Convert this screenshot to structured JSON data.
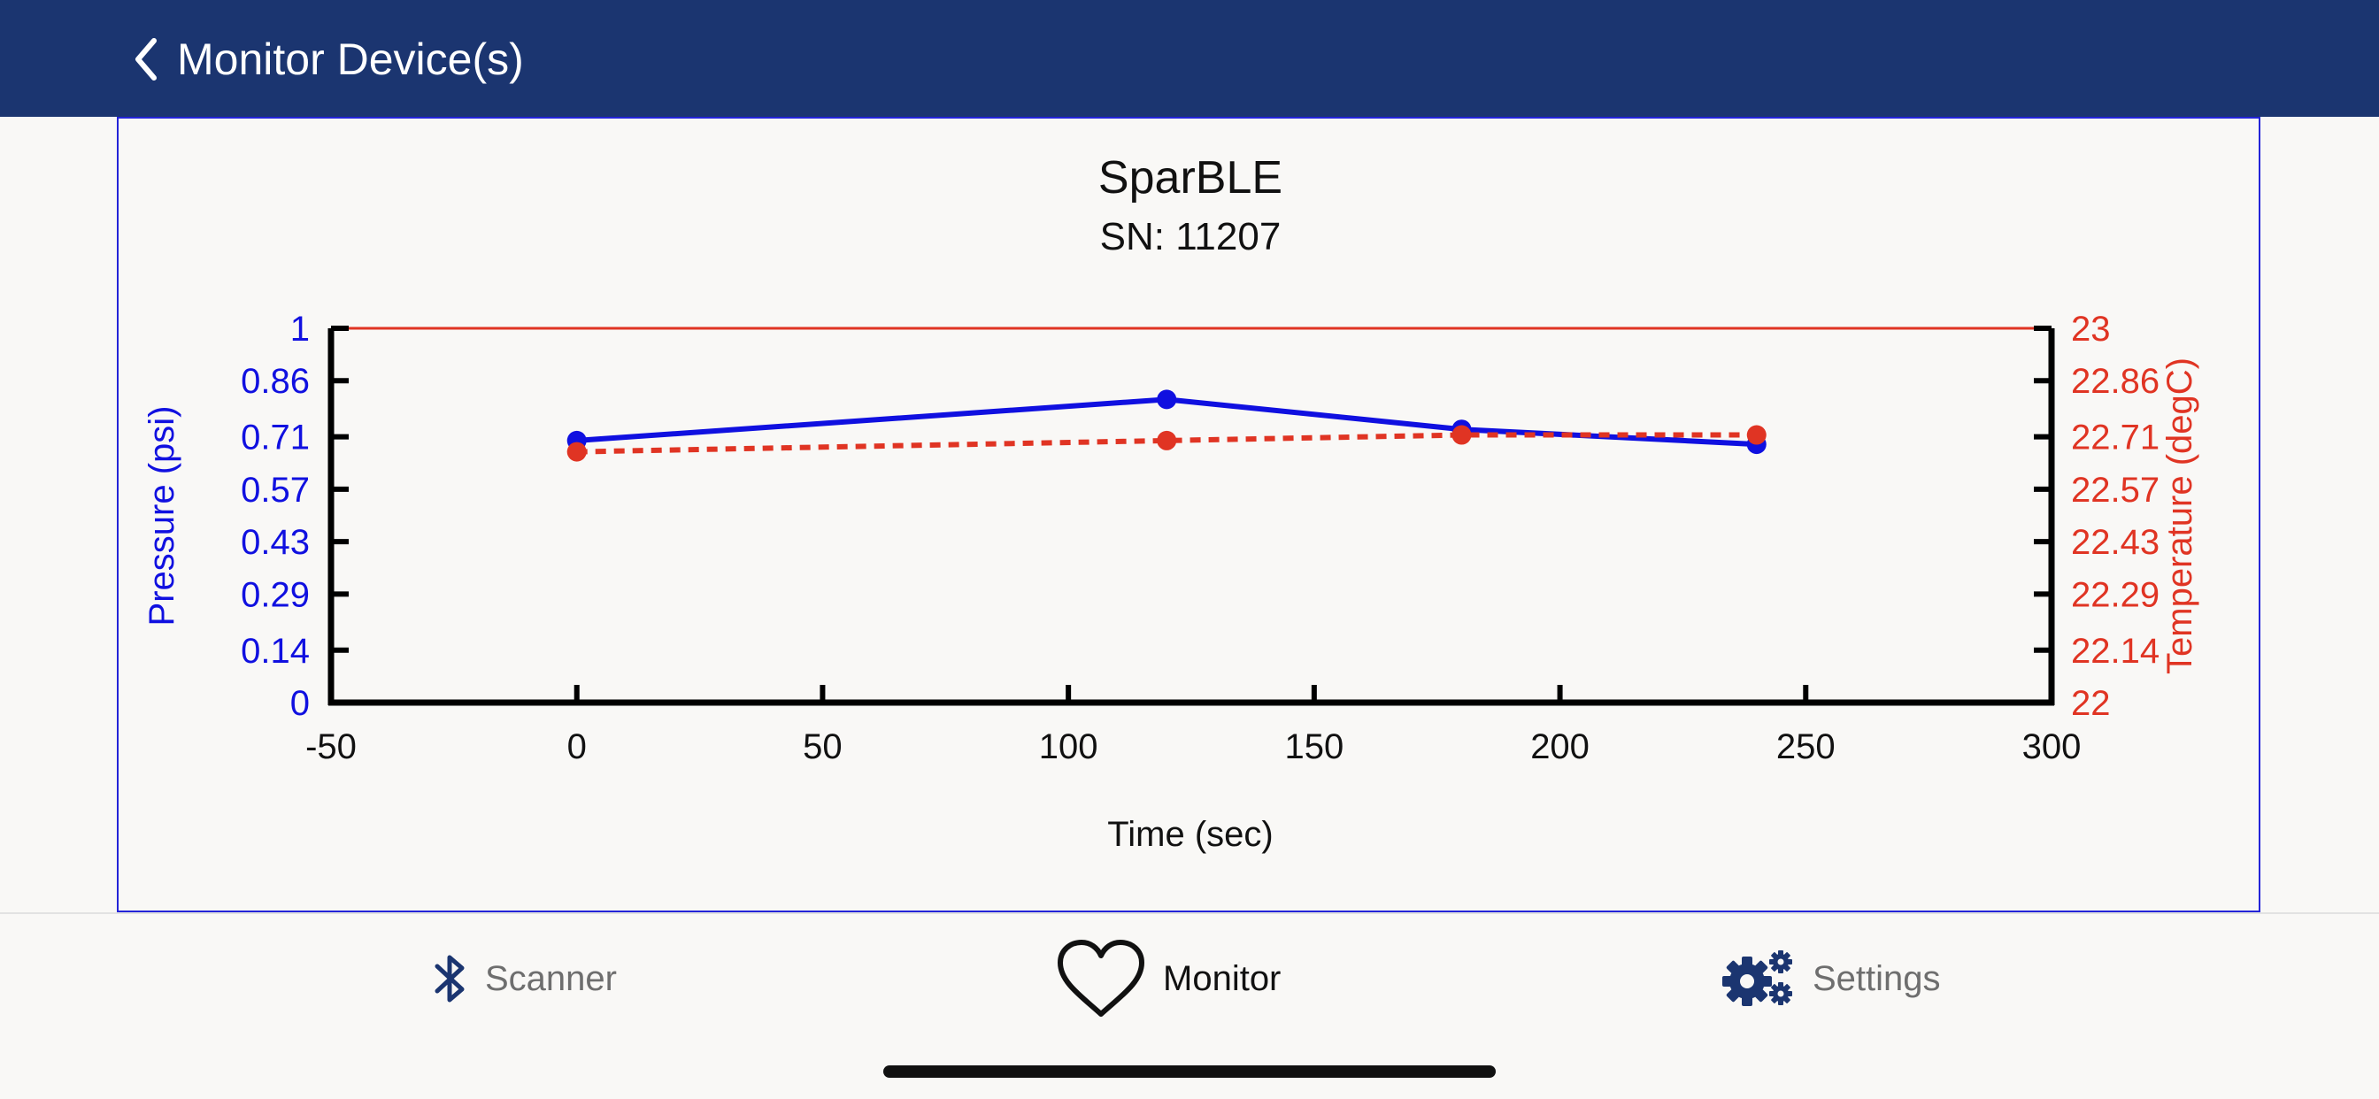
{
  "header": {
    "title": "Monitor Device(s)",
    "back_icon": "chevron-left-icon",
    "background": "#1b3570"
  },
  "chart_data": {
    "type": "line",
    "title": "SparBLE",
    "subtitle": "SN: 11207",
    "xlabel": "Time (sec)",
    "xlim": [
      -50,
      300
    ],
    "xticks": [
      "-50",
      "0",
      "50",
      "100",
      "150",
      "200",
      "250",
      "300"
    ],
    "y_left": {
      "label": "Pressure (psi)",
      "ylim": [
        0,
        1
      ],
      "ticks": [
        "0",
        "0.14",
        "0.29",
        "0.43",
        "0.57",
        "0.71",
        "0.86",
        "1"
      ],
      "color": "#1010e0"
    },
    "y_right": {
      "label": "Temperature (degC)",
      "ylim": [
        22,
        23
      ],
      "ticks": [
        "22",
        "22.14",
        "22.29",
        "22.43",
        "22.57",
        "22.71",
        "22.86",
        "23"
      ],
      "color": "#e03423"
    },
    "series": [
      {
        "axis": "left",
        "style": "solid",
        "color": "#1010e0",
        "x": [
          0,
          120,
          180,
          240
        ],
        "y": [
          0.7,
          0.81,
          0.73,
          0.69
        ]
      },
      {
        "axis": "right",
        "style": "dashed",
        "color": "#e03423",
        "x": [
          0,
          120,
          180,
          240
        ],
        "y": [
          22.67,
          22.7,
          22.715,
          22.715
        ]
      }
    ],
    "reference_line": {
      "axis": "right",
      "y": 23,
      "color": "#e03423"
    },
    "grid": false
  },
  "tabs": [
    {
      "label": "Scanner",
      "icon": "bluetooth-icon",
      "active": false
    },
    {
      "label": "Monitor",
      "icon": "heart-icon",
      "active": true
    },
    {
      "label": "Settings",
      "icon": "gears-icon",
      "active": false
    }
  ],
  "colors": {
    "accent": "#1b3570",
    "frame_border": "#2424d8",
    "background": "#f9f8f6"
  }
}
